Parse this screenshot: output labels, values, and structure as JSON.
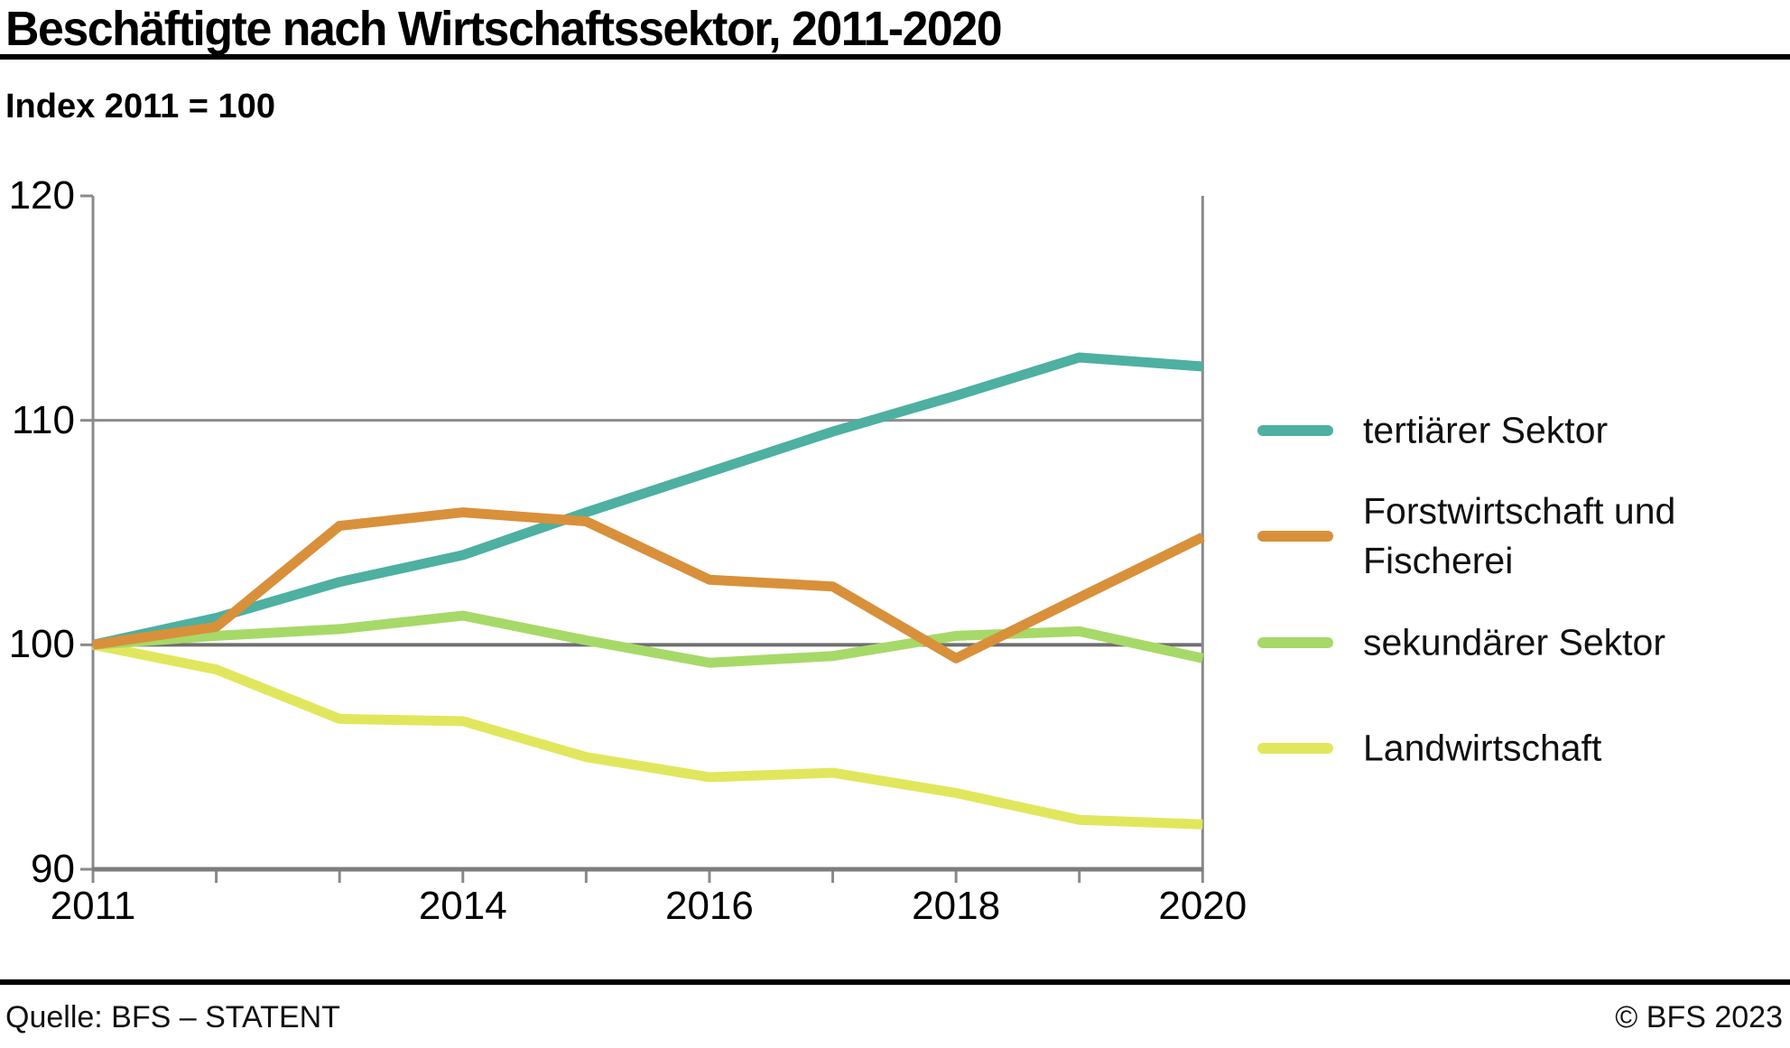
{
  "title": "Beschäftigte nach Wirtschaftssektor, 2011-2020",
  "subtitle": "Index 2011 = 100",
  "footer": {
    "source": "Quelle: BFS – STATENT",
    "copyright": "© BFS 2023"
  },
  "chart_data": {
    "type": "line",
    "title": "Beschäftigte nach Wirtschaftssektor, 2011-2020",
    "subtitle_note": "Index 2011 = 100",
    "x": [
      2011,
      2012,
      2013,
      2014,
      2015,
      2016,
      2017,
      2018,
      2019,
      2020
    ],
    "xlim": [
      2011,
      2020
    ],
    "ylim": [
      90,
      120
    ],
    "grid": "horizontal at 100 and 110",
    "legend_position": "right",
    "x_tick_years": [
      2011,
      2014,
      2016,
      2018,
      2020
    ],
    "x_tick_labels": [
      "2011",
      "2014",
      "2016",
      "2018",
      "2020"
    ],
    "y_tick_values": [
      120,
      110,
      100,
      90
    ],
    "y_tick_labels": [
      "120",
      "110",
      "100",
      "90"
    ],
    "gridline_values": [
      110,
      100
    ],
    "colors": {
      "axis": "#7d7d7d",
      "spine": "#8a8a8a",
      "gridline_light": "#8c8c8c",
      "gridline_base": "#6f6f6f"
    },
    "series": [
      {
        "name": "tertiärer Sektor",
        "color": "#4DB0A0",
        "values": [
          100,
          101.2,
          102.8,
          104.0,
          105.9,
          107.7,
          109.5,
          111.1,
          112.8,
          112.4
        ]
      },
      {
        "name": "Forstwirtschaft und Fischerei",
        "color": "#D9903A",
        "values": [
          100,
          100.8,
          105.3,
          105.9,
          105.5,
          102.9,
          102.6,
          99.4,
          102.1,
          104.8
        ]
      },
      {
        "name": "sekundärer Sektor",
        "color": "#A7D968",
        "values": [
          100,
          100.4,
          100.7,
          101.3,
          100.2,
          99.2,
          99.5,
          100.4,
          100.6,
          99.4
        ]
      },
      {
        "name": "Landwirtschaft",
        "color": "#E1E75C",
        "values": [
          100,
          98.9,
          96.7,
          96.6,
          95.0,
          94.1,
          94.3,
          93.4,
          92.2,
          92.0
        ]
      }
    ],
    "draw_order": [
      3,
      2,
      0,
      1
    ]
  }
}
